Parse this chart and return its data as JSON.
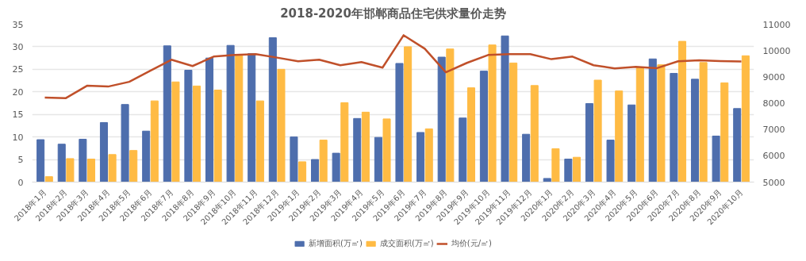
{
  "chart_data": {
    "type": "bar",
    "title": "2018-2020年邯郸商品住宅供求量价走势",
    "categories": [
      "2018年1月",
      "2018年2月",
      "2018年3月",
      "2018年4月",
      "2018年5月",
      "2018年6月",
      "2018年7月",
      "2018年8月",
      "2018年9月",
      "2018年10月",
      "2018年11月",
      "2018年12月",
      "2019年1月",
      "2019年2月",
      "2019年3月",
      "2019年4月",
      "2019年5月",
      "2019年6月",
      "2019年7月",
      "2019年8月",
      "2019年9月",
      "2019年10月",
      "2019年11月",
      "2019年12月",
      "2020年1月",
      "2020年2月",
      "2020年3月",
      "2020年4月",
      "2020年5月",
      "2020年6月",
      "2020年7月",
      "2020年8月",
      "2020年9月",
      "2020年10月"
    ],
    "series": [
      {
        "name": "新增面积(万㎡)",
        "color": "#4e6ead",
        "values": [
          9.4,
          8.4,
          9.5,
          13.2,
          17.2,
          11.3,
          30.2,
          24.8,
          27.5,
          30.3,
          28.5,
          32.0,
          10.0,
          5.0,
          6.4,
          14.1,
          9.9,
          26.3,
          11.0,
          27.7,
          14.2,
          24.6,
          32.4,
          10.6,
          0.8,
          5.1,
          17.4,
          9.3,
          17.1,
          27.3,
          24.1,
          22.8,
          10.2,
          16.3
        ]
      },
      {
        "name": "成交面积(万㎡)",
        "color": "#ffbb44",
        "values": [
          1.2,
          5.2,
          5.1,
          6.1,
          7.0,
          18.0,
          22.2,
          21.3,
          20.4,
          28.2,
          18.0,
          25.0,
          4.5,
          9.3,
          17.6,
          15.5,
          14.0,
          30.0,
          11.8,
          29.5,
          20.9,
          30.4,
          26.4,
          21.4,
          7.4,
          5.5,
          22.6,
          20.2,
          25.5,
          26.0,
          31.2,
          26.5,
          22.0,
          28.0
        ]
      },
      {
        "name": "均价(元/㎡)",
        "color": "#c0502a",
        "type": "line",
        "axis": "y2",
        "values": [
          8210,
          8190,
          8660,
          8630,
          8810,
          9230,
          9650,
          9410,
          9770,
          9830,
          9860,
          9730,
          9590,
          9650,
          9440,
          9560,
          9350,
          10580,
          10070,
          9170,
          9530,
          9830,
          9860,
          9860,
          9670,
          9770,
          9440,
          9320,
          9380,
          9330,
          9590,
          9630,
          9600,
          9580
        ]
      }
    ],
    "ylim": [
      0,
      35
    ],
    "yticks": [
      0,
      5,
      10,
      15,
      20,
      25,
      30,
      35
    ],
    "y2lim": [
      5000,
      11000
    ],
    "y2ticks": [
      5000,
      6000,
      7000,
      8000,
      9000,
      10000,
      11000
    ],
    "grid": "y",
    "legend": "bottom",
    "marker": "none",
    "line_style": "solid"
  }
}
